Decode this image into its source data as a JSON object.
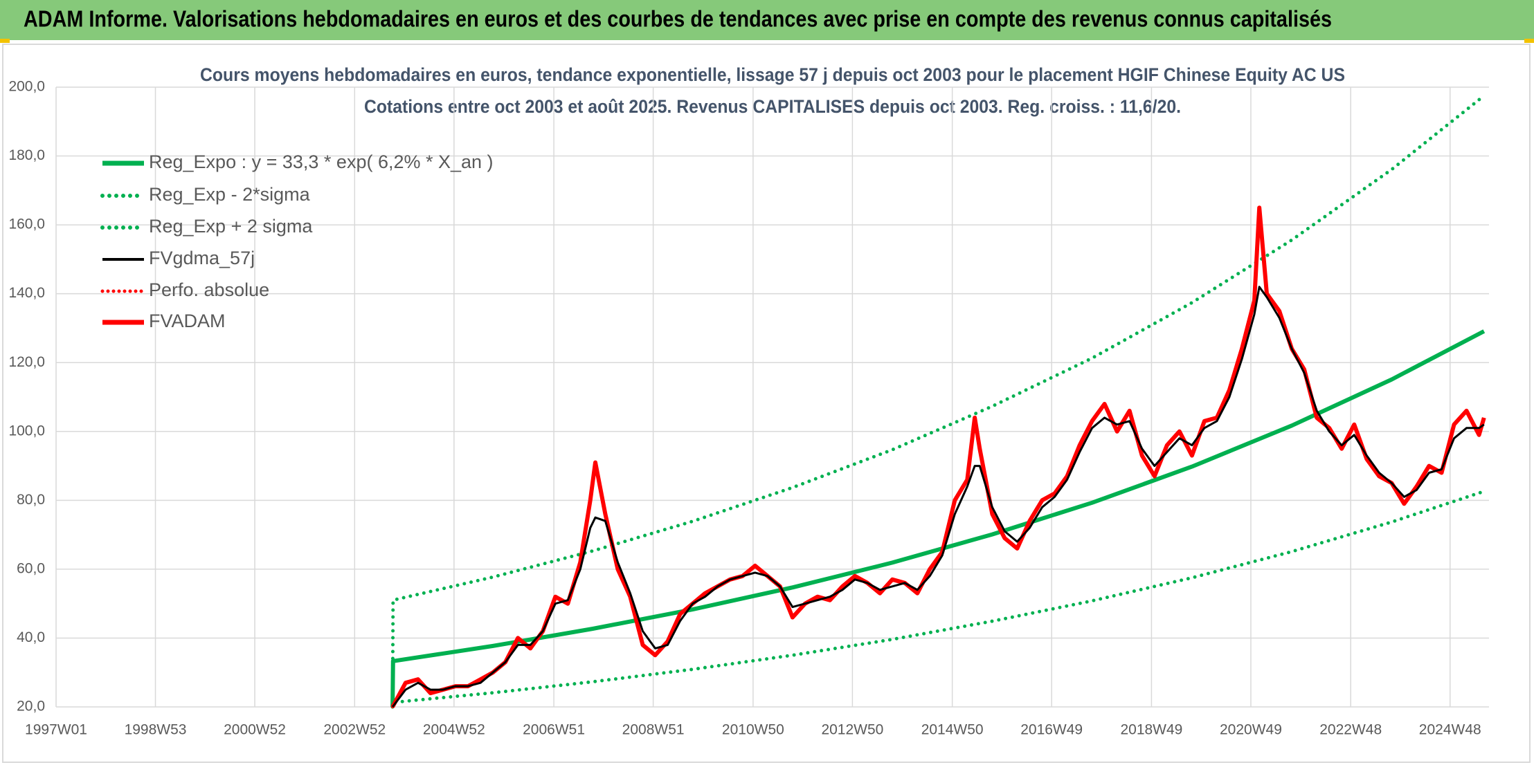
{
  "header": {
    "title": "ADAM Informe. Valorisations hebdomadaires en euros et des courbes de tendances avec prise en compte des revenus connus capitalisés"
  },
  "chart_data": {
    "type": "line",
    "title": "Cours moyens hebdomadaires en euros, tendance exponentielle, lissage 57 j depuis oct 2003 pour le placement HGIF Chinese Equity AC US",
    "subtitle": "Cotations entre oct 2003 et août 2025. Revenus CAPITALISES depuis oct 2003. Reg. croiss. : 11,6/20.",
    "xlim": [
      1997.0,
      2025.7
    ],
    "xticks": [
      {
        "value": 1997.0,
        "label": "1997W01"
      },
      {
        "value": 1998.99,
        "label": "1998W53"
      },
      {
        "value": 2000.98,
        "label": "2000W52"
      },
      {
        "value": 2002.98,
        "label": "2002W52"
      },
      {
        "value": 2004.97,
        "label": "2004W52"
      },
      {
        "value": 2006.97,
        "label": "2006W51"
      },
      {
        "value": 2008.96,
        "label": "2008W51"
      },
      {
        "value": 2010.96,
        "label": "2010W50"
      },
      {
        "value": 2012.95,
        "label": "2012W50"
      },
      {
        "value": 2014.95,
        "label": "2014W50"
      },
      {
        "value": 2016.94,
        "label": "2016W49"
      },
      {
        "value": 2018.94,
        "label": "2018W49"
      },
      {
        "value": 2020.93,
        "label": "2020W49"
      },
      {
        "value": 2022.93,
        "label": "2022W48"
      },
      {
        "value": 2024.92,
        "label": "2024W48"
      }
    ],
    "ylim": [
      20,
      200
    ],
    "yticks": [
      {
        "value": 20,
        "label": "20,0"
      },
      {
        "value": 40,
        "label": "40,0"
      },
      {
        "value": 60,
        "label": "60,0"
      },
      {
        "value": 80,
        "label": "80,0"
      },
      {
        "value": 100,
        "label": "100,0"
      },
      {
        "value": 120,
        "label": "120,0"
      },
      {
        "value": 140,
        "label": "140,0"
      },
      {
        "value": 160,
        "label": "160,0"
      },
      {
        "value": 180,
        "label": "180,0"
      },
      {
        "value": 200,
        "label": "200,0"
      }
    ],
    "grid": true,
    "legend": "upper left",
    "x": [
      2003.74,
      2004.0,
      2004.25,
      2004.5,
      2004.75,
      2005.0,
      2005.25,
      2005.5,
      2005.75,
      2006.0,
      2006.25,
      2006.5,
      2006.75,
      2007.0,
      2007.25,
      2007.5,
      2007.7,
      2007.8,
      2008.0,
      2008.25,
      2008.5,
      2008.75,
      2009.0,
      2009.25,
      2009.5,
      2009.75,
      2010.0,
      2010.25,
      2010.5,
      2010.75,
      2011.0,
      2011.25,
      2011.5,
      2011.75,
      2012.0,
      2012.25,
      2012.5,
      2012.75,
      2013.0,
      2013.25,
      2013.5,
      2013.75,
      2014.0,
      2014.25,
      2014.5,
      2014.75,
      2015.0,
      2015.25,
      2015.4,
      2015.5,
      2015.75,
      2016.0,
      2016.25,
      2016.5,
      2016.75,
      2017.0,
      2017.25,
      2017.5,
      2017.75,
      2018.0,
      2018.25,
      2018.5,
      2018.75,
      2019.0,
      2019.25,
      2019.5,
      2019.75,
      2020.0,
      2020.25,
      2020.5,
      2020.75,
      2021.0,
      2021.1,
      2021.25,
      2021.5,
      2021.75,
      2022.0,
      2022.25,
      2022.5,
      2022.75,
      2023.0,
      2023.25,
      2023.5,
      2023.75,
      2024.0,
      2024.25,
      2024.5,
      2024.75,
      2025.0,
      2025.25,
      2025.5,
      2025.6
    ],
    "series": [
      {
        "name": "Reg_Expo : y = 33,3 * exp( 6,2% *  X_an )",
        "color": "#00b050",
        "line_style": "solid",
        "x": [
          2003.74,
          2003.75,
          2005.75,
          2007.75,
          2009.75,
          2011.75,
          2013.75,
          2015.75,
          2017.75,
          2019.75,
          2021.75,
          2023.75,
          2025.6
        ],
        "values": [
          20,
          33.3,
          37.7,
          42.7,
          48.3,
          54.7,
          61.9,
          70.1,
          79.3,
          89.8,
          101.7,
          115.1,
          129.1
        ]
      },
      {
        "name": "Reg_Exp - 2*sigma",
        "color": "#00b050",
        "line_style": "dotted",
        "x": [
          2003.74,
          2003.75,
          2005.75,
          2007.75,
          2009.75,
          2011.75,
          2013.75,
          2015.75,
          2017.75,
          2019.75,
          2021.75,
          2023.75,
          2025.6
        ],
        "values": [
          20,
          21.3,
          24.1,
          27.3,
          30.9,
          35.0,
          39.6,
          44.9,
          50.8,
          57.5,
          65.1,
          73.7,
          82.6
        ]
      },
      {
        "name": "Reg_Exp + 2 sigma",
        "color": "#00b050",
        "line_style": "dotted",
        "x": [
          2003.74,
          2003.75,
          2005.75,
          2007.75,
          2009.75,
          2011.75,
          2013.75,
          2015.75,
          2017.75,
          2019.75,
          2021.75,
          2023.75,
          2025.6
        ],
        "values": [
          20,
          51.0,
          57.7,
          65.3,
          73.9,
          83.7,
          94.7,
          107.3,
          121.3,
          137.4,
          155.6,
          176.1,
          197.5
        ]
      },
      {
        "name": "FVgdma_57j",
        "color": "#000000",
        "line_style": "solid",
        "values": [
          20,
          25,
          27,
          25,
          25,
          26,
          26,
          27,
          30,
          33,
          38,
          38,
          42,
          50,
          51,
          60,
          72,
          75,
          74,
          62,
          53,
          42,
          37,
          38,
          45,
          50,
          52,
          55,
          57,
          58,
          59,
          58,
          55,
          49,
          50,
          51,
          52,
          54,
          57,
          56,
          54,
          55,
          56,
          54,
          58,
          64,
          76,
          84,
          90,
          90,
          78,
          71,
          68,
          72,
          78,
          81,
          86,
          94,
          101,
          104,
          102,
          103,
          95,
          90,
          94,
          98,
          96,
          101,
          103,
          110,
          121,
          134,
          142,
          139,
          133,
          124,
          117,
          106,
          100,
          96,
          99,
          93,
          88,
          85,
          81,
          83,
          88,
          89,
          98,
          101,
          101,
          102
        ]
      },
      {
        "name": "Perfo. absolue",
        "color": "#ff0000",
        "line_style": "dotted",
        "values": [
          20,
          27,
          28,
          24,
          25,
          26,
          26,
          28,
          30,
          33,
          40,
          37,
          42,
          52,
          50,
          62,
          80,
          91,
          76,
          60,
          52,
          38,
          35,
          39,
          47,
          50,
          53,
          55,
          57,
          58,
          61,
          58,
          55,
          46,
          50,
          52,
          51,
          55,
          58,
          56,
          53,
          57,
          56,
          53,
          60,
          65,
          80,
          86,
          104,
          95,
          76,
          69,
          66,
          74,
          80,
          82,
          87,
          96,
          103,
          108,
          100,
          106,
          93,
          87,
          96,
          100,
          93,
          103,
          104,
          112,
          124,
          138,
          165,
          140,
          135,
          124,
          118,
          104,
          101,
          95,
          102,
          92,
          87,
          85,
          79,
          84,
          90,
          88,
          102,
          106,
          99,
          104
        ]
      },
      {
        "name": "FVADAM",
        "color": "#ff0000",
        "line_style": "solid",
        "values": [
          20,
          27,
          28,
          24,
          25,
          26,
          26,
          28,
          30,
          33,
          40,
          37,
          42,
          52,
          50,
          62,
          80,
          91,
          76,
          60,
          52,
          38,
          35,
          39,
          47,
          50,
          53,
          55,
          57,
          58,
          61,
          58,
          55,
          46,
          50,
          52,
          51,
          55,
          58,
          56,
          53,
          57,
          56,
          53,
          60,
          65,
          80,
          86,
          104,
          95,
          76,
          69,
          66,
          74,
          80,
          82,
          87,
          96,
          103,
          108,
          100,
          106,
          93,
          87,
          96,
          100,
          93,
          103,
          104,
          112,
          124,
          138,
          165,
          140,
          135,
          124,
          118,
          104,
          101,
          95,
          102,
          92,
          87,
          85,
          79,
          84,
          90,
          88,
          102,
          106,
          99,
          104
        ]
      }
    ]
  }
}
